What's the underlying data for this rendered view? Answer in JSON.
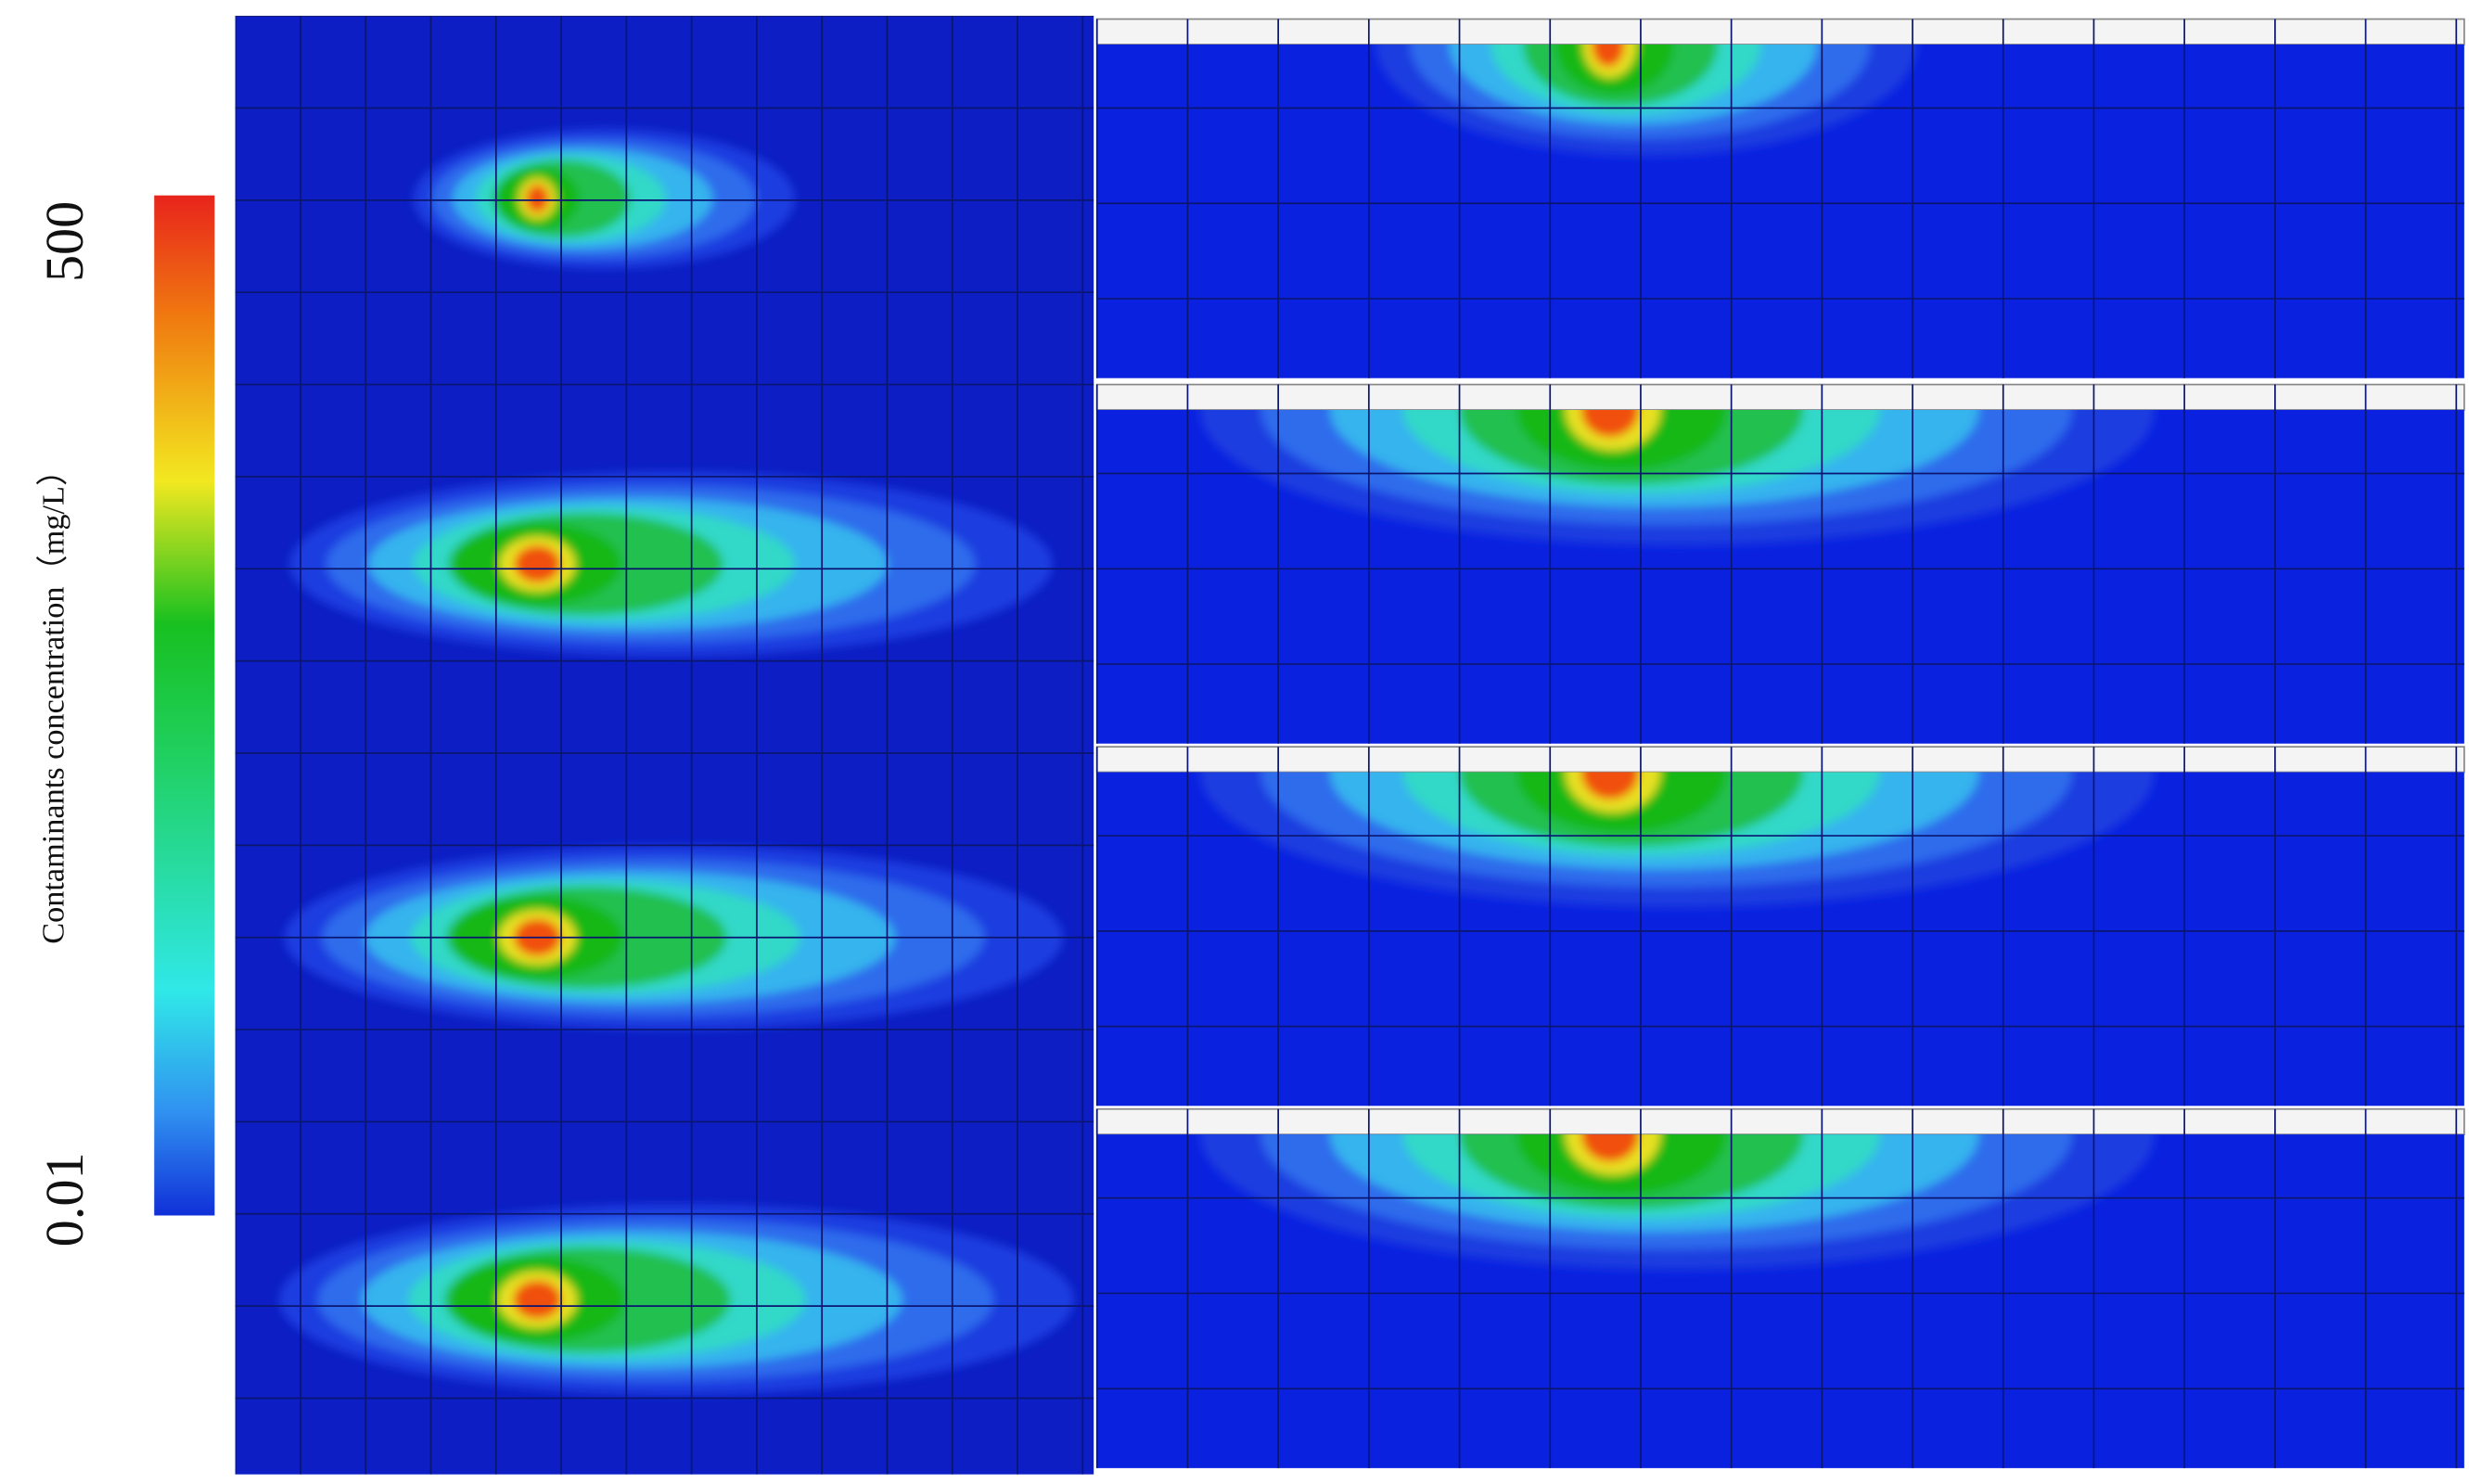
{
  "colorbar": {
    "label": "Contaminants concentration（mg/L）",
    "max": 500,
    "min": 0.01
  }
}
